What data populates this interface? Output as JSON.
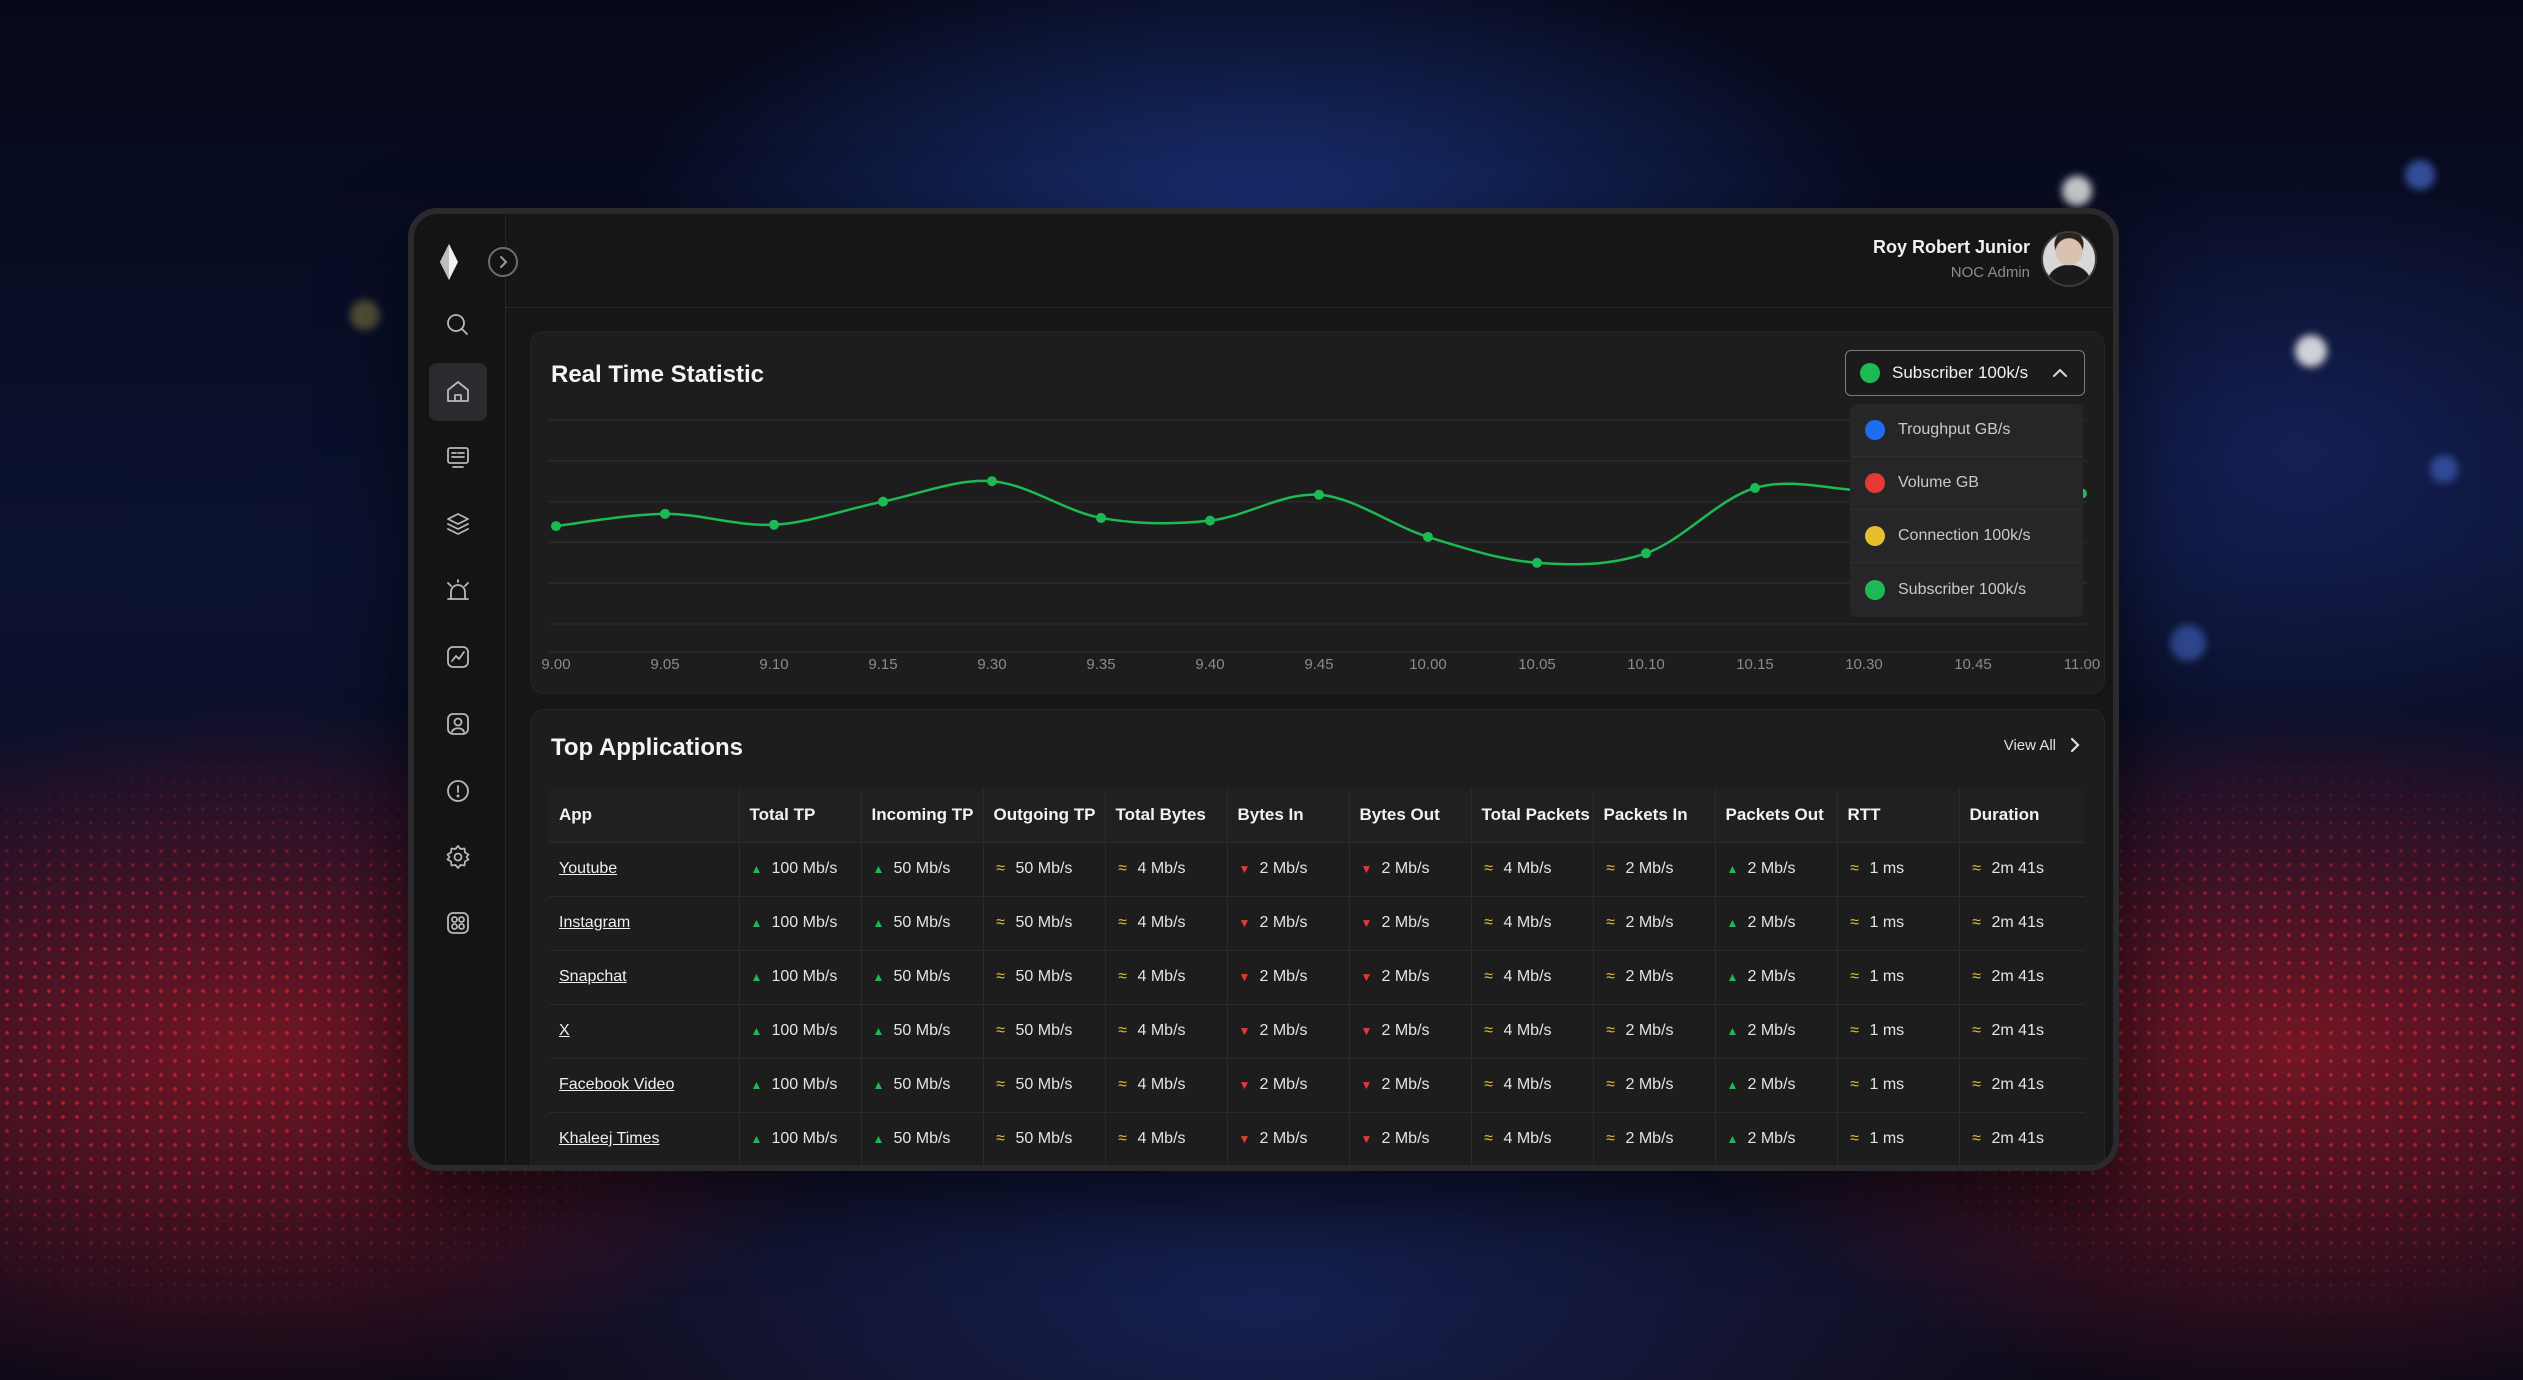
{
  "user": {
    "name": "Roy Robert Junior",
    "role": "NOC Admin"
  },
  "nav": [
    {
      "icon": "search-icon"
    },
    {
      "icon": "home-icon",
      "active": true
    },
    {
      "icon": "monitor-icon"
    },
    {
      "icon": "layers-icon"
    },
    {
      "icon": "alarm-icon"
    },
    {
      "icon": "analytics-icon"
    },
    {
      "icon": "user-badge-icon"
    },
    {
      "icon": "alert-icon"
    },
    {
      "icon": "gear-icon"
    },
    {
      "icon": "apps-icon"
    }
  ],
  "realtime": {
    "title": "Real Time Statistic",
    "selected": {
      "label": "Subscriber 100k/s",
      "color": "#1db954"
    },
    "options": [
      {
        "label": "Troughput GB/s",
        "color": "#1e6cf0"
      },
      {
        "label": "Volume GB",
        "color": "#e53935"
      },
      {
        "label": "Connection 100k/s",
        "color": "#e6c02c"
      },
      {
        "label": "Subscriber 100k/s",
        "color": "#1db954"
      }
    ]
  },
  "chart_data": {
    "type": "line",
    "x": [
      "9.00",
      "9.05",
      "9.10",
      "9.15",
      "9.30",
      "9.35",
      "9.40",
      "9.45",
      "10.00",
      "10.05",
      "10.10",
      "10.15",
      "10.30",
      "10.45",
      "11.00"
    ],
    "series": [
      {
        "color": "#1db954",
        "values": [
          0.22,
          0.31,
          0.23,
          0.4,
          0.55,
          0.28,
          0.26,
          0.45,
          0.14,
          -0.05,
          0.02,
          0.5,
          0.48,
          0.44,
          0.46
        ]
      }
    ],
    "ylim": [
      -0.5,
      1.0
    ],
    "grid": true
  },
  "apps": {
    "title": "Top Applications",
    "view_all": "View All",
    "columns": [
      "App",
      "Total TP",
      "Incoming TP",
      "Outgoing TP",
      "Total Bytes",
      "Bytes In",
      "Bytes Out",
      "Total Packets",
      "Packets In",
      "Packets Out",
      "RTT",
      "Duration"
    ],
    "trends": [
      "up",
      "up",
      "flat",
      "flat",
      "down",
      "down",
      "flat",
      "flat",
      "up",
      "flat",
      "flat"
    ],
    "rows": [
      {
        "app": "Youtube",
        "values": [
          "100 Mb/s",
          "50 Mb/s",
          "50 Mb/s",
          "4 Mb/s",
          "2 Mb/s",
          "2 Mb/s",
          "4 Mb/s",
          "2 Mb/s",
          "2 Mb/s",
          "1 ms",
          "2m 41s"
        ]
      },
      {
        "app": "Instagram",
        "values": [
          "100 Mb/s",
          "50 Mb/s",
          "50 Mb/s",
          "4 Mb/s",
          "2 Mb/s",
          "2 Mb/s",
          "4 Mb/s",
          "2 Mb/s",
          "2 Mb/s",
          "1 ms",
          "2m 41s"
        ]
      },
      {
        "app": "Snapchat",
        "values": [
          "100 Mb/s",
          "50 Mb/s",
          "50 Mb/s",
          "4 Mb/s",
          "2 Mb/s",
          "2 Mb/s",
          "4 Mb/s",
          "2 Mb/s",
          "2 Mb/s",
          "1 ms",
          "2m 41s"
        ]
      },
      {
        "app": "X",
        "values": [
          "100 Mb/s",
          "50 Mb/s",
          "50 Mb/s",
          "4 Mb/s",
          "2 Mb/s",
          "2 Mb/s",
          "4 Mb/s",
          "2 Mb/s",
          "2 Mb/s",
          "1 ms",
          "2m 41s"
        ]
      },
      {
        "app": "Facebook Video",
        "values": [
          "100 Mb/s",
          "50 Mb/s",
          "50 Mb/s",
          "4 Mb/s",
          "2 Mb/s",
          "2 Mb/s",
          "4 Mb/s",
          "2 Mb/s",
          "2 Mb/s",
          "1 ms",
          "2m 41s"
        ]
      },
      {
        "app": "Khaleej Times",
        "values": [
          "100 Mb/s",
          "50 Mb/s",
          "50 Mb/s",
          "4 Mb/s",
          "2 Mb/s",
          "2 Mb/s",
          "4 Mb/s",
          "2 Mb/s",
          "2 Mb/s",
          "1 ms",
          "2m 41s"
        ]
      }
    ]
  }
}
